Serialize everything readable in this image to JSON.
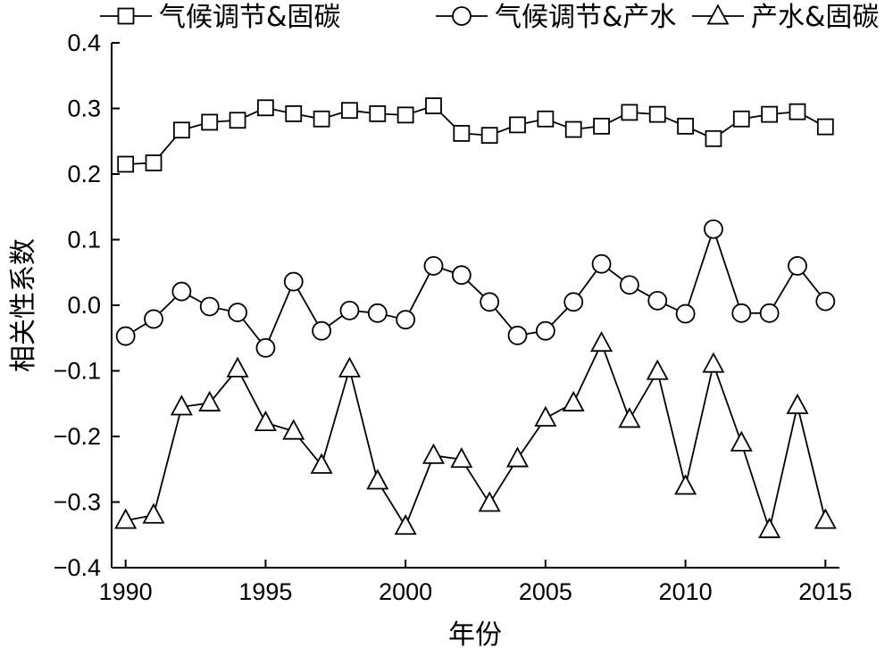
{
  "chart_data": {
    "type": "line",
    "xlabel": "年份",
    "ylabel": "相关性系数",
    "xlim": [
      1989.5,
      2015.5
    ],
    "ylim": [
      -0.4,
      0.4
    ],
    "xticks": [
      1990,
      1995,
      2000,
      2005,
      2010,
      2015
    ],
    "yticks": [
      -0.4,
      -0.3,
      -0.2,
      -0.1,
      0.0,
      0.1,
      0.2,
      0.3,
      0.4
    ],
    "ytick_labels": [
      "−0.4",
      "−0.3",
      "−0.2",
      "−0.1",
      "0.0",
      "0.1",
      "0.2",
      "0.3",
      "0.4"
    ],
    "grid": false,
    "legend_position": "top",
    "x": [
      1990,
      1991,
      1992,
      1993,
      1994,
      1995,
      1996,
      1997,
      1998,
      1999,
      2000,
      2001,
      2002,
      2003,
      2004,
      2005,
      2006,
      2007,
      2008,
      2009,
      2010,
      2011,
      2012,
      2013,
      2014,
      2015
    ],
    "series": [
      {
        "name": "气候调节&固碳",
        "marker": "square",
        "values": [
          0.215,
          0.217,
          0.267,
          0.279,
          0.282,
          0.301,
          0.292,
          0.284,
          0.297,
          0.292,
          0.29,
          0.304,
          0.262,
          0.259,
          0.275,
          0.284,
          0.268,
          0.273,
          0.294,
          0.291,
          0.273,
          0.254,
          0.284,
          0.291,
          0.295,
          0.272
        ]
      },
      {
        "name": "气候调节&产水",
        "marker": "circle",
        "values": [
          -0.047,
          -0.021,
          0.021,
          -0.002,
          -0.011,
          -0.065,
          0.036,
          -0.039,
          -0.008,
          -0.012,
          -0.022,
          0.06,
          0.046,
          0.005,
          -0.046,
          -0.039,
          0.005,
          0.063,
          0.031,
          0.007,
          -0.013,
          0.116,
          -0.012,
          -0.012,
          0.06,
          0.006
        ]
      },
      {
        "name": "产水&固碳",
        "marker": "triangle",
        "values": [
          -0.328,
          -0.32,
          -0.155,
          -0.149,
          -0.097,
          -0.179,
          -0.192,
          -0.244,
          -0.097,
          -0.268,
          -0.337,
          -0.229,
          -0.235,
          -0.302,
          -0.234,
          -0.172,
          -0.149,
          -0.058,
          -0.174,
          -0.101,
          -0.276,
          -0.09,
          -0.21,
          -0.342,
          -0.153,
          -0.328
        ]
      }
    ]
  }
}
